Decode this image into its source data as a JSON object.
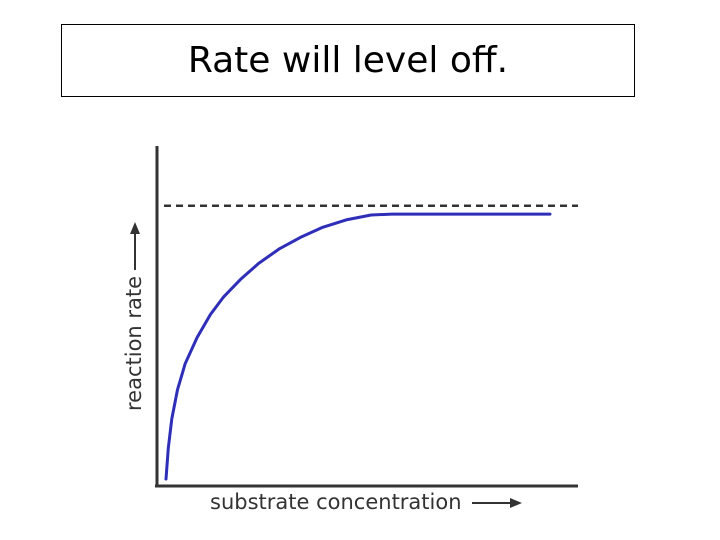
{
  "slide": {
    "title": "Rate will level off."
  },
  "chart_data": {
    "type": "line",
    "title": "",
    "xlabel": "substrate concentration",
    "ylabel": "reaction rate",
    "xlim": [
      0,
      100
    ],
    "ylim": [
      0,
      100
    ],
    "grid": false,
    "reference_lines": [
      {
        "style": "dashed",
        "y": 89,
        "label": ""
      }
    ],
    "series": [
      {
        "color": "#2e2eb8",
        "points": [
          [
            0.0,
            0.0
          ],
          [
            0.6,
            10.1
          ],
          [
            1.5,
            19.6
          ],
          [
            3.0,
            29.1
          ],
          [
            5.0,
            37.6
          ],
          [
            8.1,
            46.1
          ],
          [
            11.6,
            53.6
          ],
          [
            15.0,
            59.3
          ],
          [
            19.4,
            65.0
          ],
          [
            24.1,
            70.2
          ],
          [
            29.4,
            74.9
          ],
          [
            35.0,
            78.7
          ],
          [
            40.6,
            81.9
          ],
          [
            46.9,
            84.4
          ],
          [
            53.4,
            86.0
          ],
          [
            58.8,
            86.3
          ],
          [
            70.0,
            86.3
          ],
          [
            100.0,
            86.3
          ]
        ]
      }
    ]
  },
  "colors": {
    "axis": "#333333",
    "curve": "#2e2eb8",
    "dashed_line": "#333333"
  }
}
